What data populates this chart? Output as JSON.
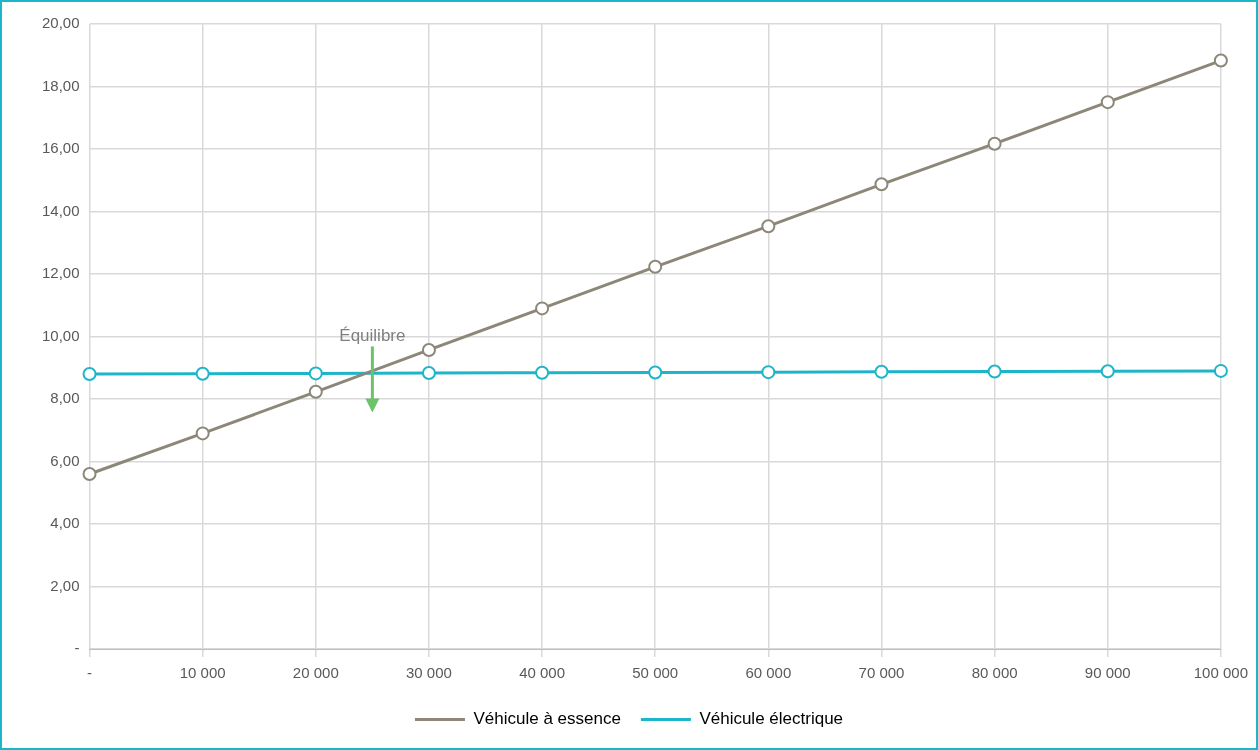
{
  "chart_data": {
    "type": "line",
    "x": [
      0,
      10000,
      20000,
      30000,
      40000,
      50000,
      60000,
      70000,
      80000,
      90000,
      100000
    ],
    "series": [
      {
        "name": "Véhicule à essence",
        "color": "#8c8778",
        "values": [
          5.6,
          6.9,
          8.23,
          9.57,
          10.9,
          12.23,
          13.53,
          14.87,
          16.17,
          17.5,
          18.83
        ]
      },
      {
        "name": "Véhicule électrique",
        "color": "#1fb5c9",
        "values": [
          8.8,
          8.81,
          8.82,
          8.83,
          8.84,
          8.85,
          8.86,
          8.87,
          8.88,
          8.89,
          8.9
        ]
      }
    ],
    "xlim": [
      0,
      100000
    ],
    "xticks": [
      {
        "value": 0,
        "label": "-"
      },
      {
        "value": 10000,
        "label": "10 000"
      },
      {
        "value": 20000,
        "label": "20 000"
      },
      {
        "value": 30000,
        "label": "30 000"
      },
      {
        "value": 40000,
        "label": "40 000"
      },
      {
        "value": 50000,
        "label": "50 000"
      },
      {
        "value": 60000,
        "label": "60 000"
      },
      {
        "value": 70000,
        "label": "70 000"
      },
      {
        "value": 80000,
        "label": "80 000"
      },
      {
        "value": 90000,
        "label": "90 000"
      },
      {
        "value": 100000,
        "label": "100 000"
      }
    ],
    "ylim": [
      0,
      20
    ],
    "yticks": [
      {
        "value": 0,
        "label": "-"
      },
      {
        "value": 2,
        "label": "2,00"
      },
      {
        "value": 4,
        "label": "4,00"
      },
      {
        "value": 6,
        "label": "6,00"
      },
      {
        "value": 8,
        "label": "8,00"
      },
      {
        "value": 10,
        "label": "10,00"
      },
      {
        "value": 12,
        "label": "12,00"
      },
      {
        "value": 14,
        "label": "14,00"
      },
      {
        "value": 16,
        "label": "16,00"
      },
      {
        "value": 18,
        "label": "18,00"
      },
      {
        "value": 20,
        "label": "20,00"
      }
    ],
    "annotations": [
      {
        "text": "Équilibre",
        "x": 25000,
        "y": 8.85
      }
    ],
    "grid": true,
    "legend": "bottom",
    "marker": "circle",
    "line_style": "solid"
  }
}
